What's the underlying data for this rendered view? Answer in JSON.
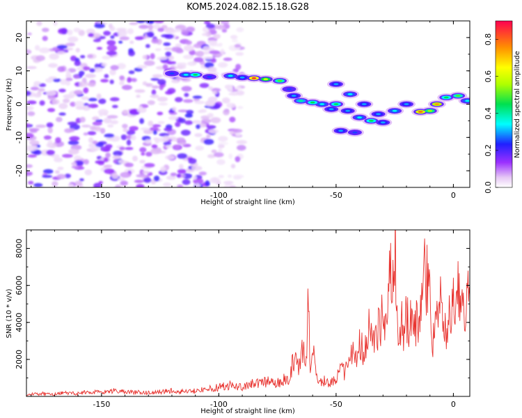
{
  "title": "KOM5.2024.082.15.18.G28",
  "chart_data": [
    {
      "type": "heatmap",
      "xlabel": "Height of straight line (km)",
      "ylabel": "Frequency (Hz)",
      "xlim": [
        -182,
        7
      ],
      "ylim": [
        -25,
        25
      ],
      "xticks": [
        -150,
        -100,
        -50,
        0
      ],
      "yticks": [
        20,
        10,
        0,
        -10,
        -20
      ],
      "colorbar": {
        "label": "Normalized spectral amplitude",
        "range": [
          0.0,
          0.9
        ],
        "ticks": [
          0.0,
          0.2,
          0.4,
          0.6,
          0.8
        ]
      },
      "noise_region": {
        "x": [
          -182,
          -90
        ],
        "y": [
          -25,
          25
        ],
        "amplitude": [
          0.03,
          0.22
        ]
      },
      "signal_track": [
        {
          "x": -120,
          "y": 9.2,
          "v": 0.25
        },
        {
          "x": -114,
          "y": 8.8,
          "v": 0.35
        },
        {
          "x": -110,
          "y": 8.8,
          "v": 0.45
        },
        {
          "x": -104,
          "y": 8.2,
          "v": 0.25
        },
        {
          "x": -95,
          "y": 8.5,
          "v": 0.35
        },
        {
          "x": -90,
          "y": 8.0,
          "v": 0.3
        },
        {
          "x": -85,
          "y": 7.8,
          "v": 0.85
        },
        {
          "x": -80,
          "y": 7.5,
          "v": 0.6
        },
        {
          "x": -74,
          "y": 7.0,
          "v": 0.5
        },
        {
          "x": -70,
          "y": 4.5,
          "v": 0.25
        },
        {
          "x": -68,
          "y": 2.5,
          "v": 0.3
        },
        {
          "x": -65,
          "y": 1.0,
          "v": 0.4
        },
        {
          "x": -60,
          "y": 0.5,
          "v": 0.45
        },
        {
          "x": -56,
          "y": 0.0,
          "v": 0.35
        },
        {
          "x": -52,
          "y": -1.5,
          "v": 0.3
        },
        {
          "x": -50,
          "y": 0.0,
          "v": 0.45
        },
        {
          "x": -45,
          "y": -2.0,
          "v": 0.3
        },
        {
          "x": -40,
          "y": -4.0,
          "v": 0.35
        },
        {
          "x": -35,
          "y": -5.0,
          "v": 0.45
        },
        {
          "x": -30,
          "y": -5.5,
          "v": 0.3
        },
        {
          "x": -25,
          "y": -2.0,
          "v": 0.35
        },
        {
          "x": -20,
          "y": 0.0,
          "v": 0.3
        },
        {
          "x": -14,
          "y": -2.3,
          "v": 0.8
        },
        {
          "x": -10,
          "y": -2.0,
          "v": 0.55
        },
        {
          "x": -7,
          "y": 0.0,
          "v": 0.75
        },
        {
          "x": -3,
          "y": 2.0,
          "v": 0.45
        },
        {
          "x": 2,
          "y": 2.5,
          "v": 0.5
        },
        {
          "x": 6,
          "y": 1.0,
          "v": 0.35
        },
        {
          "x": -50,
          "y": 6.0,
          "v": 0.3
        },
        {
          "x": -44,
          "y": 3.0,
          "v": 0.35
        },
        {
          "x": -38,
          "y": 0.0,
          "v": 0.3
        },
        {
          "x": -32,
          "y": -3.0,
          "v": 0.3
        },
        {
          "x": -48,
          "y": -8.0,
          "v": 0.3
        },
        {
          "x": -42,
          "y": -8.5,
          "v": 0.25
        }
      ]
    },
    {
      "type": "line",
      "xlabel": "Height of straight line (km)",
      "ylabel": "SNR (10 * v/v)",
      "xlim": [
        -182,
        7
      ],
      "ylim": [
        0,
        9000
      ],
      "xticks": [
        -150,
        -100,
        -50,
        0
      ],
      "yticks": [
        2000,
        4000,
        6000,
        8000
      ],
      "line_color": "#e8322e",
      "series": [
        {
          "x": [
            -182,
            -175,
            -170,
            -165,
            -160,
            -155,
            -150,
            -145,
            -140,
            -135,
            -130,
            -125,
            -120,
            -115,
            -110,
            -105,
            -100,
            -95,
            -90,
            -85,
            -80,
            -75,
            -72,
            -70,
            -68,
            -66,
            -64,
            -63,
            -62,
            -61,
            -60,
            -59,
            -58,
            -56,
            -54,
            -52,
            -50,
            -48,
            -46,
            -44,
            -42,
            -40,
            -38,
            -36,
            -34,
            -32,
            -30,
            -28,
            -27,
            -26,
            -25,
            -24,
            -23,
            -22,
            -21,
            -20,
            -19,
            -18,
            -16,
            -14,
            -13,
            -12,
            -10,
            -9,
            -8,
            -7,
            -6,
            -5,
            -4,
            -3,
            -2,
            -1,
            0,
            1,
            2,
            3,
            4,
            5,
            6,
            7
          ],
          "y": [
            100,
            150,
            120,
            200,
            150,
            250,
            200,
            300,
            250,
            220,
            200,
            250,
            300,
            250,
            300,
            400,
            500,
            600,
            500,
            700,
            800,
            700,
            900,
            1000,
            2000,
            1500,
            2500,
            1200,
            4800,
            2000,
            2500,
            1800,
            800,
            700,
            900,
            700,
            900,
            1500,
            1200,
            2500,
            2000,
            3000,
            2500,
            3500,
            2800,
            3600,
            4500,
            4000,
            7500,
            5000,
            9000,
            4500,
            2500,
            4000,
            3000,
            4500,
            3500,
            4200,
            4000,
            5000,
            4500,
            7300,
            4800,
            3000,
            4000,
            6400,
            5000,
            5500,
            4500,
            2300,
            4600,
            4000,
            5000,
            4500,
            5800,
            4800,
            4500,
            4500,
            5000,
            5500
          ]
        }
      ]
    }
  ]
}
